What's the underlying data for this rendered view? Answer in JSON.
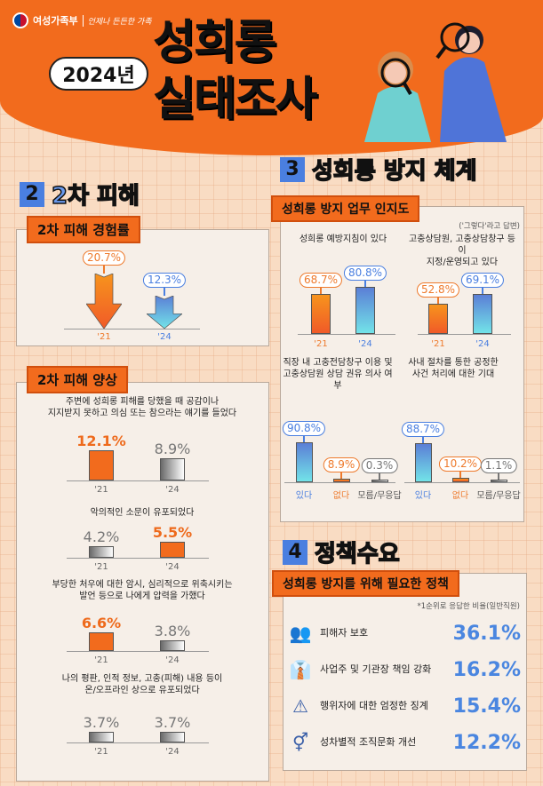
{
  "header": {
    "ministry": "여성가족부",
    "slogan": "언제나 든든한 가족",
    "year_badge": "2024년",
    "title_line1": "성희롱",
    "title_line2": "실태조사"
  },
  "sections": {
    "s2": {
      "num": "2",
      "title": "2차 피해"
    },
    "s3": {
      "num": "3",
      "title": "성희롱 방지 체계",
      "note": "('그렇다'라고 답변)"
    },
    "s4": {
      "num": "4",
      "title": "정책수요"
    }
  },
  "panels": {
    "p1": "2차 피해 경험률",
    "p2": "2차 피해 양상",
    "p3": "성희롱 방지 업무 인지도",
    "p4": "성희롱 방지를 위해 필요한 정책"
  },
  "colors": {
    "orange": "#f26b1d",
    "blue": "#4a86e0",
    "gray": "#888888"
  },
  "chart_data": [
    {
      "type": "bar",
      "title": "2차 피해 경험률",
      "categories": [
        "'21",
        "'24"
      ],
      "values": [
        20.7,
        12.3
      ],
      "unit": "%",
      "labels": [
        "20.7%",
        "12.3%"
      ]
    },
    {
      "type": "bar",
      "title": "주변에 성희롱 피해를 당했을 때 공감이나\n지지받지 못하고 의심 또는 참으라는 얘기를 들었다",
      "categories": [
        "'21",
        "'24"
      ],
      "values": [
        12.1,
        8.9
      ],
      "labels": [
        "12.1%",
        "8.9%"
      ]
    },
    {
      "type": "bar",
      "title": "악의적인 소문이 유포되었다",
      "categories": [
        "'21",
        "'24"
      ],
      "values": [
        4.2,
        5.5
      ],
      "labels": [
        "4.2%",
        "5.5%"
      ]
    },
    {
      "type": "bar",
      "title": "부당한 처우에 대한 암시, 심리적으로 위축시키는\n발언 등으로 나에게 압력을 가했다",
      "categories": [
        "'21",
        "'24"
      ],
      "values": [
        6.6,
        3.8
      ],
      "labels": [
        "6.6%",
        "3.8%"
      ]
    },
    {
      "type": "bar",
      "title": "나의 평판, 인적 정보, 고충(피해) 내용 등이\n온/오프라인 상으로 유포되었다",
      "categories": [
        "'21",
        "'24"
      ],
      "values": [
        3.7,
        3.7
      ],
      "labels": [
        "3.7%",
        "3.7%"
      ]
    },
    {
      "type": "bar",
      "title": "성희롱 예방지침이 있다",
      "categories": [
        "'21",
        "'24"
      ],
      "values": [
        68.7,
        80.8
      ],
      "labels": [
        "68.7%",
        "80.8%"
      ]
    },
    {
      "type": "bar",
      "title": "고충상담원, 고충상담창구 등이\n지정/운영되고 있다",
      "categories": [
        "'21",
        "'24"
      ],
      "values": [
        52.8,
        69.1
      ],
      "labels": [
        "52.8%",
        "69.1%"
      ]
    },
    {
      "type": "bar",
      "title": "직장 내 고충전담창구 이용 및\n고충상담원 상담 권유 의사 여부",
      "categories": [
        "있다",
        "없다",
        "모름/무응답"
      ],
      "values": [
        90.8,
        8.9,
        0.3
      ],
      "labels": [
        "90.8%",
        "8.9%",
        "0.3%"
      ]
    },
    {
      "type": "bar",
      "title": "사내 절차를 통한 공정한\n사건 처리에 대한 기대",
      "categories": [
        "있다",
        "없다",
        "모름/무응답"
      ],
      "values": [
        88.7,
        10.2,
        1.1
      ],
      "labels": [
        "88.7%",
        "10.2%",
        "1.1%"
      ]
    }
  ],
  "policy": {
    "note": "*1순위로 응답한 비율(일반직원)",
    "items": [
      {
        "icon": "victim-protection-icon",
        "label": "피해자 보호",
        "value": "36.1%"
      },
      {
        "icon": "employer-responsibility-icon",
        "label": "사업주 및 기관장 책임 강화",
        "value": "16.2%"
      },
      {
        "icon": "discipline-icon",
        "label": "행위자에 대한 엄정한 징계",
        "value": "15.4%"
      },
      {
        "icon": "gender-equality-icon",
        "label": "성차별적 조직문화 개선",
        "value": "12.2%"
      }
    ]
  }
}
